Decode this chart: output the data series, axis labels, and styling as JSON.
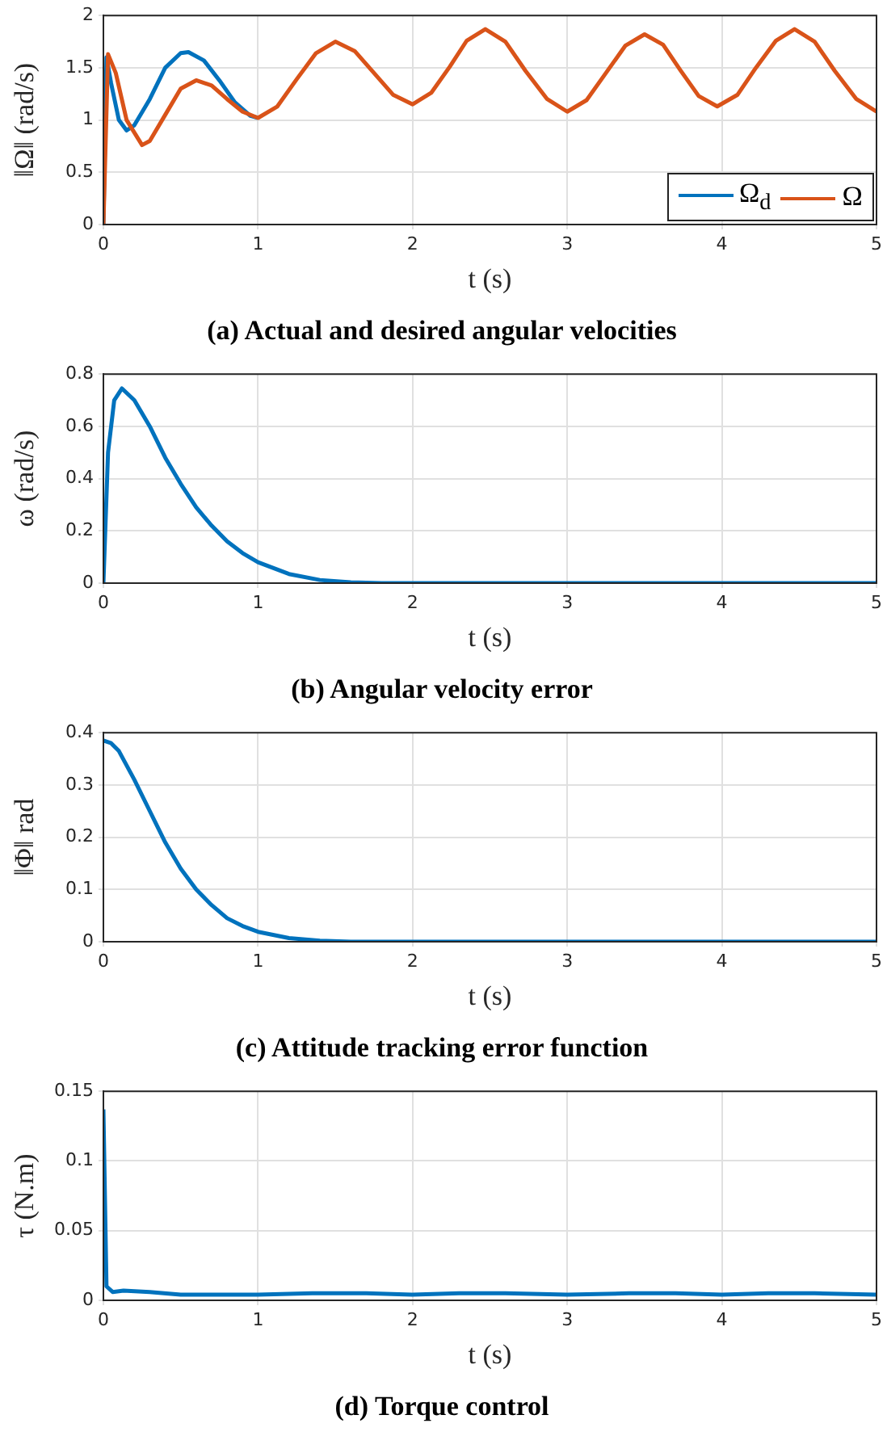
{
  "chart_data": [
    {
      "type": "line",
      "title": "(a) Actual and desired angular velocities",
      "xlabel": "t (s)",
      "ylabel": "‖Ω‖ (rad/s)",
      "xlim": [
        0,
        5
      ],
      "xticks": [
        0,
        1,
        2,
        3,
        4,
        5
      ],
      "ylim": [
        0,
        2
      ],
      "yticks": [
        0,
        0.5,
        1,
        1.5,
        2
      ],
      "grid": true,
      "legend": "bottom right",
      "line_style": "solid",
      "series": [
        {
          "name": "Ω$_{d}$",
          "color": "#0072bd",
          "x": [
            0,
            0.02,
            0.05,
            0.1,
            0.15,
            0.2,
            0.3,
            0.4,
            0.5,
            0.55,
            0.65,
            0.75,
            0.85,
            0.95,
            1.0
          ],
          "values": [
            0,
            1.6,
            1.35,
            1.0,
            0.9,
            0.95,
            1.2,
            1.5,
            1.64,
            1.65,
            1.57,
            1.38,
            1.17,
            1.04,
            1.02
          ]
        },
        {
          "name": "Ω",
          "color": "#d95319",
          "x": [
            0,
            0.03,
            0.08,
            0.15,
            0.25,
            0.3,
            0.4,
            0.5,
            0.6,
            0.7,
            0.8,
            0.9,
            1.0,
            1.125,
            1.25,
            1.375,
            1.5,
            1.625,
            1.75,
            1.875,
            2.0,
            2.12,
            2.24,
            2.35,
            2.47,
            2.6,
            2.73,
            2.87,
            3.0,
            3.125,
            3.25,
            3.375,
            3.5,
            3.62,
            3.735,
            3.85,
            3.97,
            4.1,
            4.22,
            4.35,
            4.47,
            4.6,
            4.73,
            4.87,
            5
          ],
          "values": [
            0,
            1.63,
            1.45,
            1.0,
            0.76,
            0.8,
            1.05,
            1.3,
            1.38,
            1.33,
            1.2,
            1.08,
            1.02,
            1.13,
            1.39,
            1.64,
            1.75,
            1.66,
            1.45,
            1.24,
            1.15,
            1.26,
            1.51,
            1.76,
            1.87,
            1.75,
            1.47,
            1.2,
            1.08,
            1.19,
            1.45,
            1.71,
            1.82,
            1.72,
            1.47,
            1.23,
            1.13,
            1.24,
            1.5,
            1.76,
            1.87,
            1.75,
            1.47,
            1.2,
            1.08
          ]
        }
      ]
    },
    {
      "type": "line",
      "title": "(b) Angular velocity error",
      "xlabel": "t (s)",
      "ylabel": "ω (rad/s)",
      "xlim": [
        0,
        5
      ],
      "xticks": [
        0,
        1,
        2,
        3,
        4,
        5
      ],
      "ylim": [
        0,
        0.8
      ],
      "yticks": [
        0,
        0.2,
        0.4,
        0.6,
        0.8
      ],
      "grid": true,
      "line_style": "solid",
      "series": [
        {
          "color": "#0072bd",
          "x": [
            0,
            0.03,
            0.07,
            0.12,
            0.2,
            0.3,
            0.4,
            0.5,
            0.6,
            0.7,
            0.8,
            0.9,
            1.0,
            1.2,
            1.4,
            1.6,
            1.8,
            2,
            5
          ],
          "values": [
            0,
            0.5,
            0.7,
            0.745,
            0.7,
            0.6,
            0.48,
            0.38,
            0.29,
            0.22,
            0.16,
            0.115,
            0.08,
            0.035,
            0.012,
            0.003,
            0,
            0,
            0
          ]
        }
      ]
    },
    {
      "type": "line",
      "title": "(c) Attitude tracking error function",
      "xlabel": "t (s)",
      "ylabel": "‖Φ‖ rad",
      "xlim": [
        0,
        5
      ],
      "xticks": [
        0,
        1,
        2,
        3,
        4,
        5
      ],
      "ylim": [
        0,
        0.4
      ],
      "yticks": [
        0,
        0.1,
        0.2,
        0.3,
        0.4
      ],
      "grid": true,
      "line_style": "solid",
      "series": [
        {
          "color": "#0072bd",
          "x": [
            0,
            0.05,
            0.1,
            0.2,
            0.3,
            0.4,
            0.5,
            0.6,
            0.7,
            0.8,
            0.9,
            1.0,
            1.2,
            1.4,
            1.6,
            5
          ],
          "values": [
            0.385,
            0.38,
            0.365,
            0.31,
            0.25,
            0.19,
            0.14,
            0.1,
            0.07,
            0.045,
            0.03,
            0.019,
            0.007,
            0.002,
            0,
            0
          ]
        }
      ]
    },
    {
      "type": "line",
      "title": "(d) Torque control",
      "xlabel": "t (s)",
      "ylabel": "τ (N.m)",
      "xlim": [
        0,
        5
      ],
      "xticks": [
        0,
        1,
        2,
        3,
        4,
        5
      ],
      "ylim": [
        0,
        0.15
      ],
      "yticks": [
        0,
        0.05,
        0.1,
        0.15
      ],
      "grid": true,
      "line_style": "solid",
      "series": [
        {
          "color": "#0072bd",
          "x": [
            0,
            0.02,
            0.06,
            0.13,
            0.3,
            0.5,
            1,
            1.35,
            1.7,
            2,
            2.3,
            2.6,
            3,
            3.4,
            3.7,
            4,
            4.3,
            4.6,
            5
          ],
          "values": [
            0.137,
            0.01,
            0.006,
            0.007,
            0.006,
            0.004,
            0.004,
            0.005,
            0.005,
            0.004,
            0.005,
            0.005,
            0.004,
            0.005,
            0.005,
            0.004,
            0.005,
            0.005,
            0.004
          ]
        }
      ]
    }
  ]
}
